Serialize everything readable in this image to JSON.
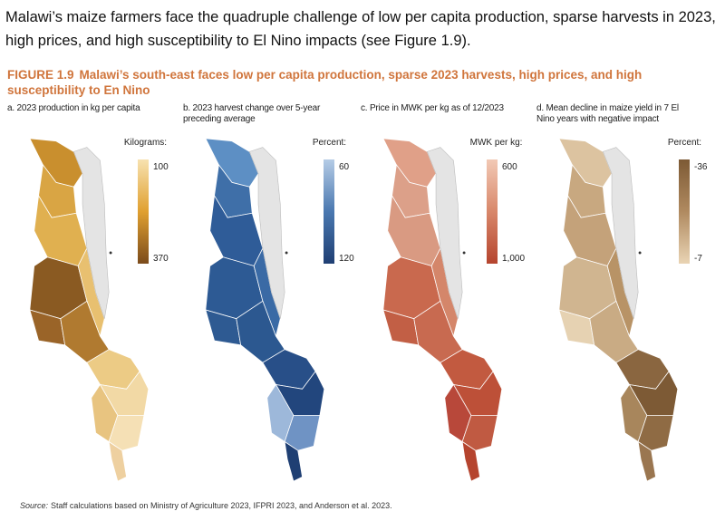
{
  "intro": "Malawi’s maize farmers face the quadruple challenge of low per capita production, sparse harvests in 2023, high prices, and high susceptibility to El Nino impacts (see Figure 1.9).",
  "figure": {
    "label": "FIGURE 1.9",
    "title": "Malawi’s south-east faces low per capita production, sparse 2023 harvests, high prices, and high susceptibility to En Nino"
  },
  "panels": [
    {
      "title": "a. 2023 production in kg per capita",
      "legend_title": "Kilograms:",
      "legend_top": "100",
      "legend_bottom": "370"
    },
    {
      "title": "b. 2023 harvest change over 5-year preceding average",
      "legend_title": "Percent:",
      "legend_top": "60",
      "legend_bottom": "120"
    },
    {
      "title": "c. Price in MWK per kg as of 12/2023",
      "legend_title": "MWK per kg:",
      "legend_top": "600",
      "legend_bottom": "1,000"
    },
    {
      "title": "d. Mean decline in maize yield in 7 El Nino years with negative impact",
      "legend_title": "Percent:",
      "legend_top": "-36",
      "legend_bottom": "-7"
    }
  ],
  "source": {
    "label": "Source:",
    "text": "Staff calculations based on Ministry of Agriculture 2023, IFPRI 2023, and Anderson et al. 2023."
  }
}
